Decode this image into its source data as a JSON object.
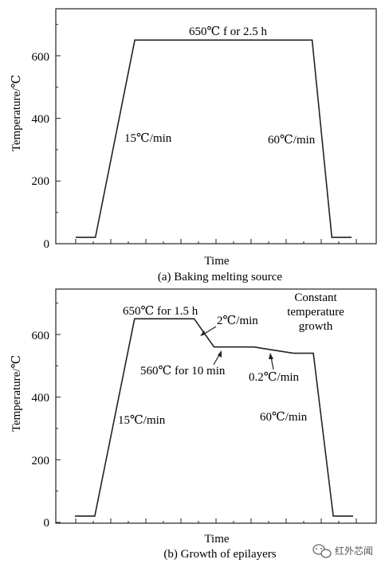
{
  "chart_data": [
    {
      "type": "line",
      "caption": "(a) Baking melting source",
      "xlabel": "Time",
      "ylabel": "Temperature/℃",
      "ylim": [
        0,
        750
      ],
      "yticks": [
        "0",
        "200",
        "400",
        "600"
      ],
      "x": [
        0,
        1,
        3,
        12,
        13,
        14
      ],
      "y": [
        20,
        20,
        650,
        650,
        20,
        20
      ],
      "annotations": [
        "650℃ f or 2.5 h",
        "15℃/min",
        "60℃/min"
      ]
    },
    {
      "type": "line",
      "caption": "(b) Growth of epilayers",
      "xlabel": "Time",
      "ylabel": "Temperature/℃",
      "ylim": [
        0,
        750
      ],
      "yticks": [
        "0",
        "200",
        "400",
        "600"
      ],
      "x": [
        0,
        1,
        3,
        6,
        7,
        9,
        10,
        11,
        12,
        13,
        14
      ],
      "y": [
        20,
        20,
        650,
        650,
        560,
        560,
        550,
        540,
        540,
        20,
        20
      ],
      "annotations": [
        "650℃ for 1.5 h",
        "2℃/min",
        "560℃ for 10 min",
        "0.2℃/min",
        "Constant",
        "temperature",
        "growth",
        "15℃/min",
        "60℃/min"
      ]
    }
  ],
  "watermark": {
    "icon": "wechat-icon",
    "text": "红外芯闻"
  }
}
